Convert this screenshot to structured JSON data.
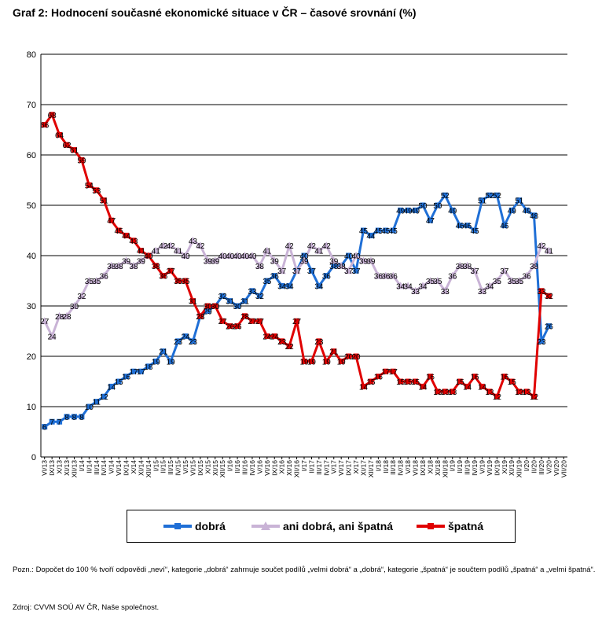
{
  "title": "Graf 2: Hodnocení současné ekonomické situace v ČR – časové srovnání (%)",
  "note": "Pozn.: Dopočet do 100 % tvoří odpovědi „neví“, kategorie „dobrá“ zahrnuje součet podílů „velmi dobrá“ a „dobrá“, kategorie „špatná“ je součtem podílů „špatná“ a „velmi špatná“.",
  "source": "Zdroj: CVVM SOÚ AV ČR, Naše společnost.",
  "legend": [
    {
      "label": "dobrá",
      "color": "#1f6fd6",
      "marker": "square"
    },
    {
      "label": "ani dobrá, ani špatná",
      "color": "#c9b3d6",
      "marker": "triangle"
    },
    {
      "label": "špatná",
      "color": "#e00000",
      "marker": "square"
    }
  ],
  "chart_data": {
    "type": "line",
    "title": "Graf 2: Hodnocení současné ekonomické situace v ČR – časové srovnání (%)",
    "ylim": [
      0,
      80
    ],
    "yticks": [
      0,
      10,
      20,
      30,
      40,
      50,
      60,
      70,
      80
    ],
    "grid": true,
    "legend_position": "bottom",
    "categories": [
      "VI/13",
      "IX/13",
      "X/13",
      "XI/13",
      "XII/13",
      "I/14",
      "II/14",
      "III/14",
      "IV/14",
      "V/14",
      "VI/14",
      "IX/14",
      "X/14",
      "XI/14",
      "XII/14",
      "I/15",
      "II/15",
      "III/15",
      "IV/15",
      "V/15",
      "VI/15",
      "IX/15",
      "X/15",
      "XI/15",
      "XII/15",
      "I/16",
      "II/16",
      "III/16",
      "IV/16",
      "V/16",
      "VI/16",
      "IX/16",
      "X/16",
      "XI/16",
      "XII/16",
      "I/17",
      "II/17",
      "III/17",
      "IV/17",
      "V/17",
      "VI/17",
      "IX/17",
      "X/17",
      "XI/17",
      "XII/17",
      "I/18",
      "II/18",
      "III/18",
      "IV/18",
      "V/18",
      "VI/18",
      "IX/18",
      "X/18",
      "XI/18",
      "XII/18",
      "I/19",
      "II/19",
      "III/19",
      "IV/19",
      "V/19",
      "VI/19",
      "IX/19",
      "X/19",
      "XI/19",
      "XII/19",
      "I/20",
      "II/20",
      "III/20",
      "V/20",
      "VI/20",
      "VII/20"
    ],
    "series": [
      {
        "name": "dobrá",
        "color": "#1f6fd6",
        "marker": "square",
        "values": [
          6,
          7,
          7,
          8,
          8,
          8,
          10,
          11,
          12,
          14,
          15,
          16,
          17,
          17,
          18,
          19,
          21,
          19,
          23,
          24,
          23,
          28,
          29,
          30,
          32,
          31,
          30,
          31,
          33,
          32,
          35,
          36,
          34,
          34,
          37,
          40,
          37,
          34,
          36,
          38,
          38,
          40,
          37,
          45,
          44,
          45,
          45,
          45,
          49,
          49,
          49,
          50,
          47,
          50,
          52,
          49,
          46,
          46,
          45,
          51,
          52,
          52,
          46,
          49,
          51,
          49,
          48,
          23,
          26,
          null,
          null
        ]
      },
      {
        "name": "ani dobrá, ani špatná",
        "color": "#c9b3d6",
        "marker": "triangle",
        "values": [
          27,
          24,
          28,
          28,
          30,
          32,
          35,
          35,
          36,
          38,
          38,
          39,
          38,
          39,
          40,
          41,
          42,
          42,
          41,
          40,
          43,
          42,
          39,
          39,
          40,
          40,
          40,
          40,
          40,
          38,
          41,
          39,
          37,
          42,
          37,
          39,
          42,
          41,
          42,
          39,
          38,
          37,
          40,
          39,
          39,
          36,
          36,
          36,
          34,
          34,
          33,
          34,
          35,
          35,
          33,
          36,
          38,
          38,
          37,
          33,
          34,
          35,
          37,
          35,
          35,
          36,
          38,
          42,
          41,
          null,
          null
        ]
      },
      {
        "name": "špatná",
        "color": "#e00000",
        "marker": "square",
        "values": [
          66,
          68,
          64,
          62,
          61,
          59,
          54,
          53,
          51,
          47,
          45,
          44,
          43,
          41,
          40,
          38,
          36,
          37,
          35,
          35,
          31,
          28,
          30,
          30,
          27,
          26,
          26,
          28,
          27,
          27,
          24,
          24,
          23,
          22,
          27,
          19,
          19,
          23,
          19,
          21,
          19,
          20,
          20,
          14,
          15,
          16,
          17,
          17,
          15,
          15,
          15,
          14,
          16,
          13,
          13,
          13,
          15,
          14,
          16,
          14,
          13,
          12,
          16,
          15,
          13,
          13,
          12,
          33,
          32,
          null,
          null
        ]
      }
    ]
  }
}
